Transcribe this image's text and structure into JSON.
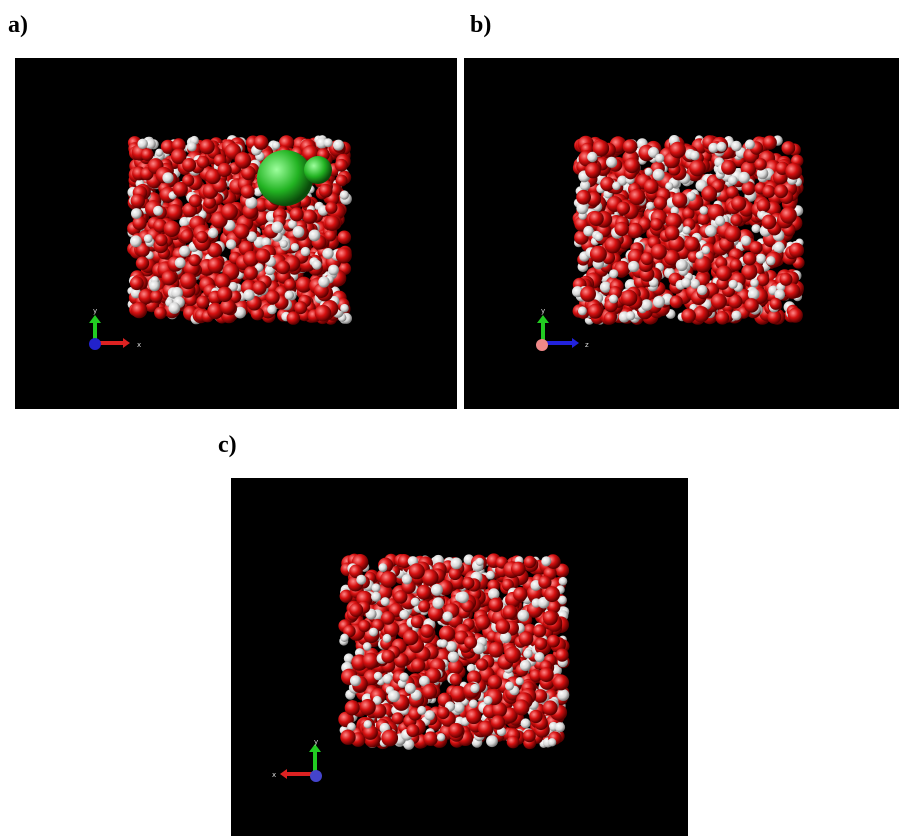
{
  "panels": [
    {
      "label": "a)",
      "axes": [
        "y",
        "x"
      ]
    },
    {
      "label": "b)",
      "axes": [
        "y",
        "z"
      ]
    },
    {
      "label": "c)",
      "axes": [
        "x",
        "y"
      ]
    }
  ]
}
